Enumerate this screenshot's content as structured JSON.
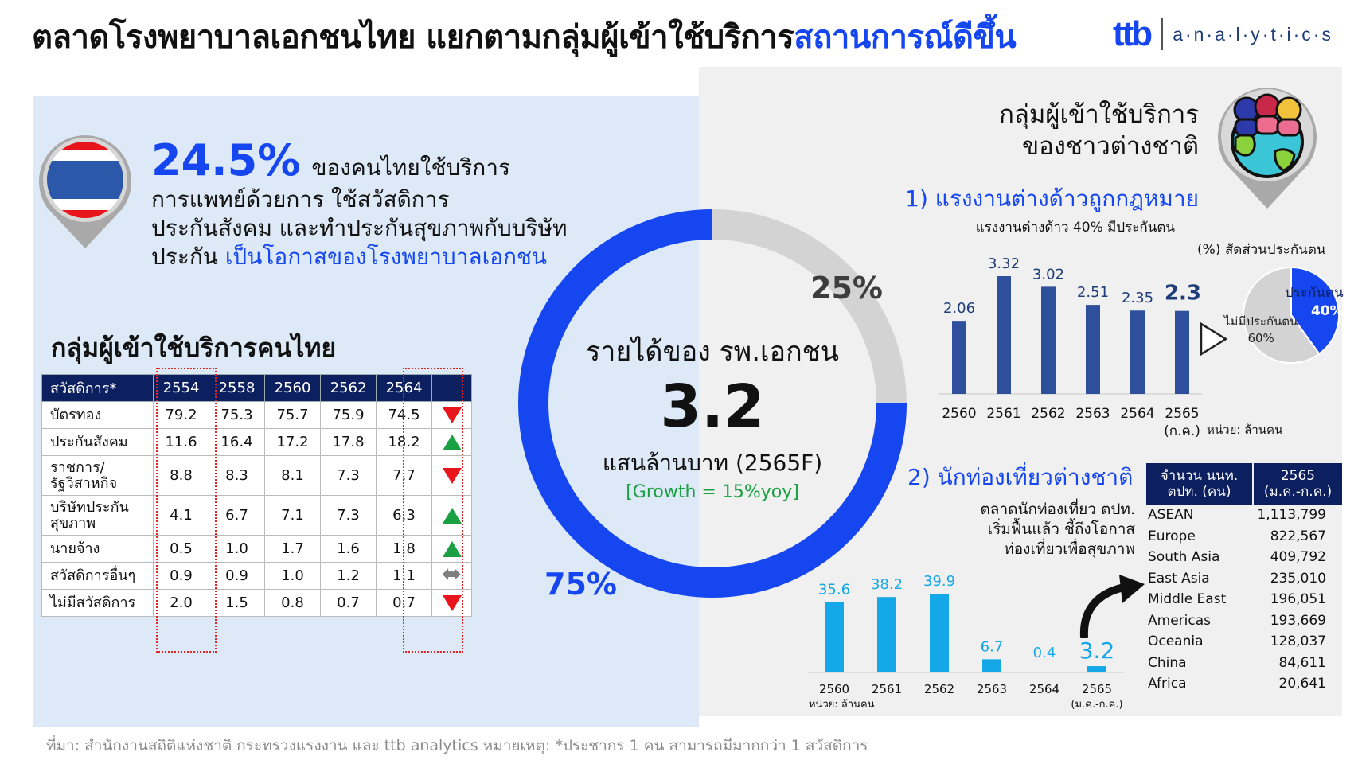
{
  "title": {
    "main": "ตลาดโรงพยาบาลเอกชนไทย แยกตามกลุ่มผู้เข้าใช้บริการ",
    "highlight": "สถานการณ์ดีขึ้น"
  },
  "logo": {
    "brand": "ttb",
    "sub": "a·n·a·l·y·t·i·c·s"
  },
  "thai_stat": {
    "value": "24.5%",
    "line1": "ของคนไทยใช้บริการ",
    "line2": "การแพทย์ด้วยการ ใช้สวัสดิการ",
    "line3": "ประกันสังคม และทำประกันสุขภาพกับบริษัท",
    "line4a": "ประกัน",
    "line4b": "เป็นโอกาสของโรงพยาบาลเอกชน"
  },
  "thai_table": {
    "title": "กลุ่มผู้เข้าใช้บริการคนไทย",
    "header": [
      "สวัสดิการ*",
      "2554",
      "2558",
      "2560",
      "2562",
      "2564"
    ],
    "rows": [
      {
        "label": "บัตรทอง",
        "values": [
          "79.2",
          "75.3",
          "75.7",
          "75.9",
          "74.5"
        ],
        "trend": "down"
      },
      {
        "label": "ประกันสังคม",
        "values": [
          "11.6",
          "16.4",
          "17.2",
          "17.8",
          "18.2"
        ],
        "trend": "up"
      },
      {
        "label": "ราชการ/\nรัฐวิสาหกิจ",
        "values": [
          "8.8",
          "8.3",
          "8.1",
          "7.3",
          "7.7"
        ],
        "trend": "down"
      },
      {
        "label": "บริษัทประกัน\nสุขภาพ",
        "values": [
          "4.1",
          "6.7",
          "7.1",
          "7.3",
          "6.3"
        ],
        "trend": "up"
      },
      {
        "label": "นายจ้าง",
        "values": [
          "0.5",
          "1.0",
          "1.7",
          "1.6",
          "1.8"
        ],
        "trend": "up"
      },
      {
        "label": "สวัสดิการอื่นๆ",
        "values": [
          "0.9",
          "0.9",
          "1.0",
          "1.2",
          "1.1"
        ],
        "trend": "flat"
      },
      {
        "label": "ไม่มีสวัสดิการ",
        "values": [
          "2.0",
          "1.5",
          "0.8",
          "0.7",
          "0.7"
        ],
        "trend": "down"
      }
    ]
  },
  "revenue": {
    "title": "รายได้ของ รพ.เอกชน",
    "value": "3.2",
    "unit": "แสนล้านบาท (2565F)",
    "growth": "[Growth = 15%yoy]",
    "share_gray": "25%",
    "share_blue": "75%"
  },
  "foreign": {
    "title_line1": "กลุ่มผู้เข้าใช้บริการ",
    "title_line2": "ของชาวต่างชาติ",
    "s1_title": "1) แรงงานต่างด้าวถูกกฎหมาย",
    "s1_sub": "แรงงานต่างด้าว 40% มีประกันตน",
    "s1_ratio_label": "(%) สัดส่วนประกันตน",
    "s1_unit": "หน่วย: ล้านคน",
    "pie_a_label": "ประกันตน",
    "pie_a_pct": "40%",
    "pie_b_label": "ไม่มีประกันตน",
    "pie_b_pct": "60%",
    "s2_title": "2) นักท่องเที่ยวต่างชาติ",
    "s2_desc1": "ตลาดนักท่องเที่ยว ตปท.",
    "s2_desc2": "เริ่มฟื้นแล้ว ชี้ถึงโอกาส",
    "s2_desc3": "ท่องเที่ยวเพื่อสุขภาพ",
    "s2_unit": "หน่วย: ล้านคน"
  },
  "tour_table": {
    "head1": "จำนวน นนท.\nตปท. (คน)",
    "head2": "2565\n(ม.ค.-ก.ค.)",
    "rows": [
      {
        "region": "ASEAN",
        "count": "1,113,799"
      },
      {
        "region": "Europe",
        "count": "822,567"
      },
      {
        "region": "South Asia",
        "count": "409,792"
      },
      {
        "region": "East Asia",
        "count": "235,010"
      },
      {
        "region": "Middle East",
        "count": "196,051"
      },
      {
        "region": "Americas",
        "count": "193,669"
      },
      {
        "region": "Oceania",
        "count": "128,037"
      },
      {
        "region": "China",
        "count": "84,611"
      },
      {
        "region": "Africa",
        "count": "20,641"
      }
    ]
  },
  "footer": "ที่มา: สำนักงานสถิติแห่งชาติ กระทรวงแรงงาน และ ttb analytics หมายเหตุ: *ประชากร 1 คน สามารถมีมากกว่า 1 สวัสดิการ",
  "colors": {
    "accent": "#1546f0",
    "navy": "#0c1f5e",
    "bar_navy": "#2d4f9c",
    "bar_cyan": "#14a8e8",
    "up": "#19a043",
    "down": "#e8161c",
    "gray": "#d3d3d3"
  },
  "chart_data": [
    {
      "type": "pie",
      "title": "รายได้ของ รพ.เอกชน",
      "categories": [
        "",
        ""
      ],
      "values": [
        25,
        75
      ],
      "colors": [
        "#d3d3d3",
        "#1546f0"
      ]
    },
    {
      "type": "bar",
      "title": "1) แรงงานต่างด้าวถูกกฎหมาย",
      "categories": [
        "2560",
        "2561",
        "2562",
        "2563",
        "2564",
        "2565\n(ก.ค.)"
      ],
      "values": [
        2.06,
        3.32,
        3.02,
        2.51,
        2.35,
        2.34
      ],
      "value_labels": [
        "2.06",
        "3.32",
        "3.02",
        "2.51",
        "2.35",
        "2.34"
      ],
      "ylabel": "หน่วย: ล้านคน",
      "color": "#2d4f9c"
    },
    {
      "type": "pie",
      "title": "(%) สัดส่วนประกันตน",
      "categories": [
        "ประกันตน",
        "ไม่มีประกันตน"
      ],
      "values": [
        40,
        60
      ],
      "colors": [
        "#1546f0",
        "#d3d3d3"
      ]
    },
    {
      "type": "bar",
      "title": "2) นักท่องเที่ยวต่างชาติ",
      "categories": [
        "2560",
        "2561",
        "2562",
        "2563",
        "2564",
        "2565\n(ม.ค.-ก.ค.)"
      ],
      "values": [
        35.6,
        38.2,
        39.9,
        6.7,
        0.4,
        3.2
      ],
      "value_labels": [
        "35.6",
        "38.2",
        "39.9",
        "6.7",
        "0.4",
        "3.2"
      ],
      "ylabel": "หน่วย: ล้านคน",
      "color": "#14a8e8"
    }
  ]
}
